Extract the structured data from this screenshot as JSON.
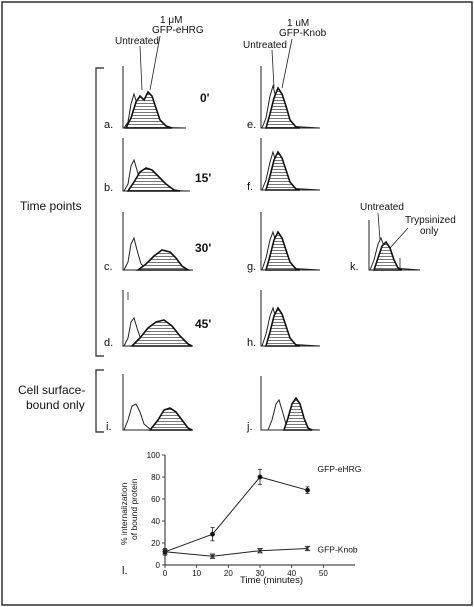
{
  "column_headers": {
    "left_untreated": "Untreated",
    "left_concentration": "1 μM",
    "left_protein": "GFP-eHRG",
    "right_untreated": "Untreated",
    "right_concentration": "1 uM",
    "right_protein": "GFP-Knob"
  },
  "row_group_labels": {
    "time_points": "Time points",
    "surface_line1": "Cell surface-",
    "surface_line2": "bound only"
  },
  "time_labels": [
    "0'",
    "15'",
    "30'",
    "45'"
  ],
  "panel_letters": {
    "a": "a.",
    "b": "b.",
    "c": "c.",
    "d": "d.",
    "i": "i.",
    "e": "e.",
    "f": "f.",
    "g": "g.",
    "h": "h.",
    "j": "j.",
    "k": "k.",
    "l": "l."
  },
  "panel_k_annotations": {
    "untreated": "Untreated",
    "trypsinized_line1": "Trypsinized",
    "trypsinized_line2": "only"
  },
  "chart_data": {
    "type": "line",
    "x": [
      0,
      15,
      30,
      45
    ],
    "xlabel": "Time (minutes)",
    "ylabel_line1": "% internalization",
    "ylabel_line2": "of bound protein",
    "xlim": [
      0,
      60
    ],
    "ylim": [
      0,
      100
    ],
    "xticks": [
      "0",
      "10",
      "20",
      "30",
      "40",
      "50"
    ],
    "yticks": [
      "0",
      "20",
      "40",
      "60",
      "80",
      "100"
    ],
    "series": [
      {
        "name": "GFP-eHRG",
        "values": [
          12,
          28,
          80,
          68
        ],
        "errors": [
          3,
          6,
          7,
          3
        ],
        "marker": "circle"
      },
      {
        "name": "GFP-Knob",
        "values": [
          12,
          8,
          13,
          15
        ],
        "errors": [
          2,
          2,
          2,
          2
        ],
        "marker": "x"
      }
    ]
  }
}
